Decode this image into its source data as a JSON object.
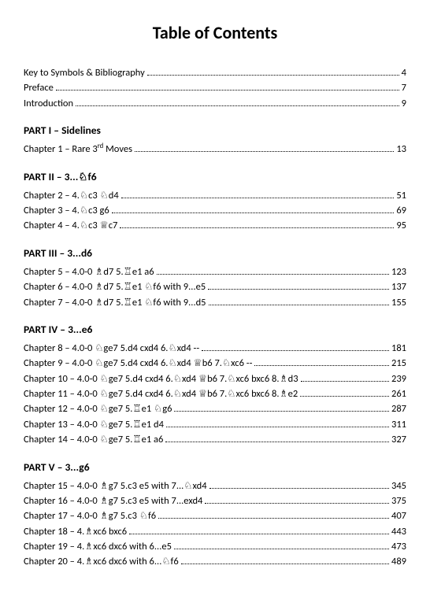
{
  "title": "Table of Contents",
  "front": [
    {
      "label": "Key to Symbols & Bibliography",
      "page": "4"
    },
    {
      "label": "Preface",
      "page": "7"
    },
    {
      "label": "Introduction",
      "page": "9"
    }
  ],
  "parts": [
    {
      "heading": "PART I – Sidelines",
      "chapters": [
        {
          "label": "Chapter 1 – Rare 3__SUP_rd__ Moves",
          "page": "13"
        }
      ]
    },
    {
      "heading": "PART II – 3...♘f6",
      "chapters": [
        {
          "label": "Chapter 2 – 4.♘c3 ♘d4",
          "page": "51"
        },
        {
          "label": "Chapter 3 – 4.♘c3 g6",
          "page": "69"
        },
        {
          "label": "Chapter 4 – 4.♘c3 ♕c7",
          "page": "95"
        }
      ]
    },
    {
      "heading": "PART III – 3...d6",
      "chapters": [
        {
          "label": "Chapter 5 – 4.0-0 ♗d7 5.♖e1 a6",
          "page": "123"
        },
        {
          "label": "Chapter 6 – 4.0-0 ♗d7 5.♖e1 ♘f6 with 9...e5",
          "page": "137"
        },
        {
          "label": "Chapter 7 – 4.0-0 ♗d7 5.♖e1 ♘f6 with 9...d5",
          "page": "155"
        }
      ]
    },
    {
      "heading": "PART IV – 3...e6",
      "chapters": [
        {
          "label": "Chapter 8 – 4.0-0 ♘ge7 5.d4 cxd4 6.♘xd4 --",
          "page": "181"
        },
        {
          "label": "Chapter 9 – 4.0-0 ♘ge7 5.d4 cxd4 6.♘xd4 ♕b6 7.♘xc6 --",
          "page": "215"
        },
        {
          "label": "Chapter 10 – 4.0-0 ♘ge7 5.d4 cxd4 6.♘xd4 ♕b6 7.♘xc6 bxc6 8.♗d3",
          "page": "239"
        },
        {
          "label": "Chapter 11 – 4.0-0 ♘ge7 5.d4 cxd4 6.♘xd4 ♕b6 7.♘xc6 bxc6 8.♗e2",
          "page": "261"
        },
        {
          "label": "Chapter 12 – 4.0-0 ♘ge7 5.♖e1 ♘g6",
          "page": "287"
        },
        {
          "label": "Chapter 13 – 4.0-0 ♘ge7 5.♖e1 d4",
          "page": "311"
        },
        {
          "label": "Chapter 14 – 4.0-0 ♘ge7 5.♖e1 a6",
          "page": "327"
        }
      ]
    },
    {
      "heading": "PART V – 3...g6",
      "chapters": [
        {
          "label": "Chapter 15 – 4.0-0 ♗g7 5.c3 e5 with 7...♘xd4",
          "page": "345"
        },
        {
          "label": "Chapter 16 – 4.0-0 ♗g7 5.c3 e5 with 7...exd4",
          "page": "375"
        },
        {
          "label": "Chapter 17 – 4.0-0 ♗g7 5.c3 ♘f6",
          "page": "407"
        },
        {
          "label": "Chapter 18 – 4.♗xc6 bxc6",
          "page": "443"
        },
        {
          "label": "Chapter 19 – 4.♗xc6 dxc6 with 6...e5",
          "page": "473"
        },
        {
          "label": "Chapter 20 – 4.♗xc6 dxc6 with 6...♘f6",
          "page": "489"
        }
      ]
    }
  ]
}
